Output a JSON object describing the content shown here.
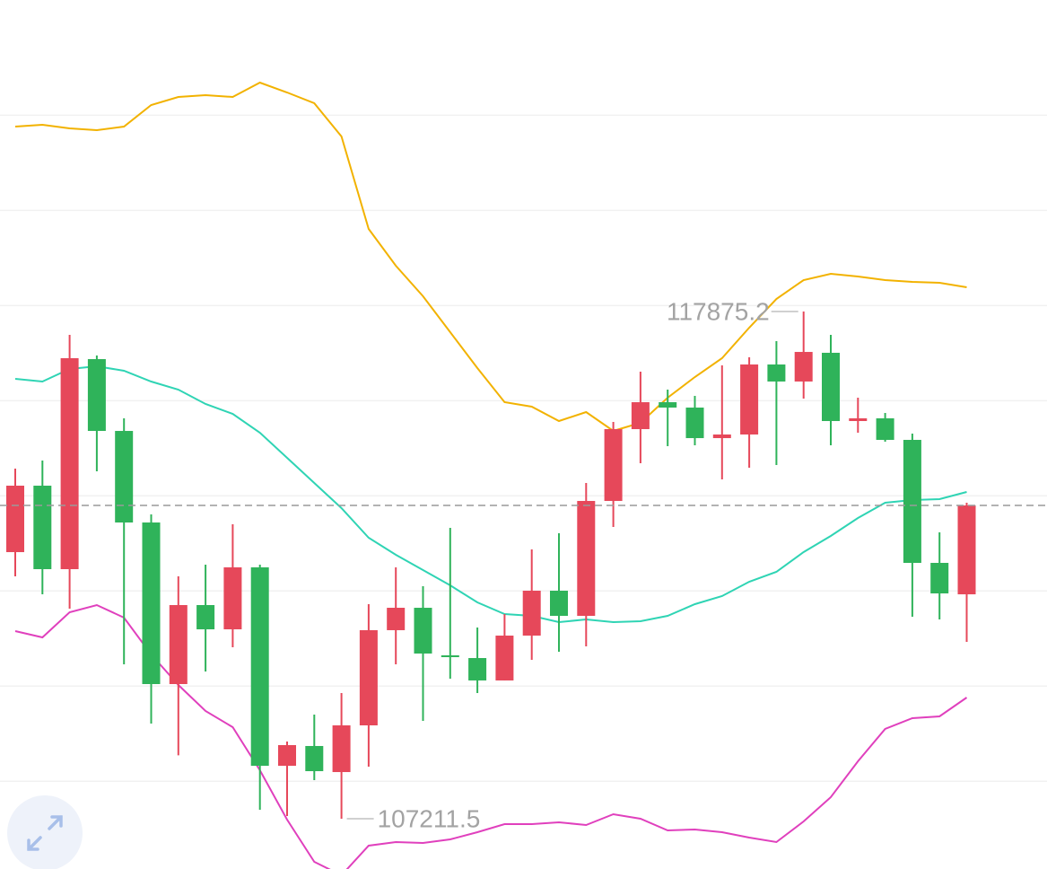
{
  "chart_data": {
    "type": "candlestick",
    "ylim": [
      106154,
      124424
    ],
    "yticks": [
      108000,
      110000,
      112000,
      114000,
      116000,
      118000,
      120000,
      122000
    ],
    "grid": true,
    "up_color": "#e6485a",
    "down_color": "#2fb35a",
    "open": [
      112816,
      114213,
      112458,
      116874,
      115364,
      113439,
      110042,
      111703,
      111193,
      112496,
      108324,
      108740,
      108192,
      109174,
      111175,
      111646,
      110646,
      110589,
      110118,
      111061,
      112005,
      111476,
      113892,
      115402,
      115968,
      115855,
      115213,
      115289,
      116761,
      116403,
      117007,
      115572,
      115629,
      115176,
      112590,
      111929
    ],
    "high": [
      114572,
      114742,
      117384,
      116950,
      115629,
      113609,
      112307,
      112552,
      113402,
      112552,
      108834,
      109400,
      109853,
      111722,
      112496,
      112099,
      113326,
      111231,
      111514,
      112873,
      113213,
      114270,
      115553,
      116610,
      116233,
      116101,
      116742,
      116912,
      117252,
      117875.2,
      117384,
      116063,
      115742,
      115308,
      113232,
      113855
    ],
    "low": [
      112307,
      111929,
      111627,
      114515,
      110457,
      109212,
      108545,
      110306,
      110816,
      107400,
      107268,
      108022,
      107211.5,
      108306,
      110457,
      109268,
      110155,
      109853,
      110118,
      110552,
      110722,
      110835,
      113345,
      114685,
      115044,
      115062,
      114345,
      114591,
      114647,
      116044,
      115062,
      115327,
      115138,
      111458,
      111401,
      110929
    ],
    "close": [
      114213,
      112458,
      116893,
      115364,
      113439,
      110042,
      111703,
      111193,
      112496,
      108324,
      108759,
      108211,
      109174,
      111175,
      111646,
      110684,
      110608,
      110118,
      111061,
      112005,
      111476,
      113892,
      115402,
      115968,
      115855,
      115213,
      115289,
      116761,
      116403,
      117025,
      115572,
      115629,
      115176,
      112590,
      111948,
      113798
    ],
    "lines": [
      {
        "color": "#f2b200",
        "values": [
          121763,
          121801,
          121725,
          121687,
          121763,
          122216,
          122386,
          122423,
          122386,
          122688,
          122480,
          122253,
          121555,
          119611,
          118837,
          118196,
          117441,
          116686,
          115968,
          115874,
          115572,
          115761,
          115364,
          115534,
          116063,
          116497,
          116893,
          117535,
          118139,
          118535,
          118667,
          118611,
          118535,
          118498,
          118479,
          118384
        ]
      },
      {
        "color": "#2fd4b4",
        "values": [
          116459,
          116403,
          116667,
          116723,
          116629,
          116403,
          116233,
          115931,
          115723,
          115327,
          114798,
          114270,
          113741,
          113118,
          112760,
          112439,
          112118,
          111760,
          111514,
          111476,
          111344,
          111401,
          111344,
          111363,
          111476,
          111722,
          111892,
          112194,
          112401,
          112816,
          113156,
          113534,
          113855,
          113911,
          113930,
          114081
        ]
      },
      {
        "color": "#e040bd",
        "values": [
          111156,
          111023,
          111552,
          111703,
          111439,
          110665,
          110023,
          109476,
          109136,
          108230,
          107192,
          106305,
          106022,
          106645,
          106720,
          106701,
          106777,
          106928,
          107098,
          107098,
          107135,
          107079,
          107305,
          107211,
          106966,
          106984,
          106928,
          106815,
          106720,
          107154,
          107664,
          108418,
          109098,
          109325,
          109363,
          109759
        ]
      }
    ]
  }
}
